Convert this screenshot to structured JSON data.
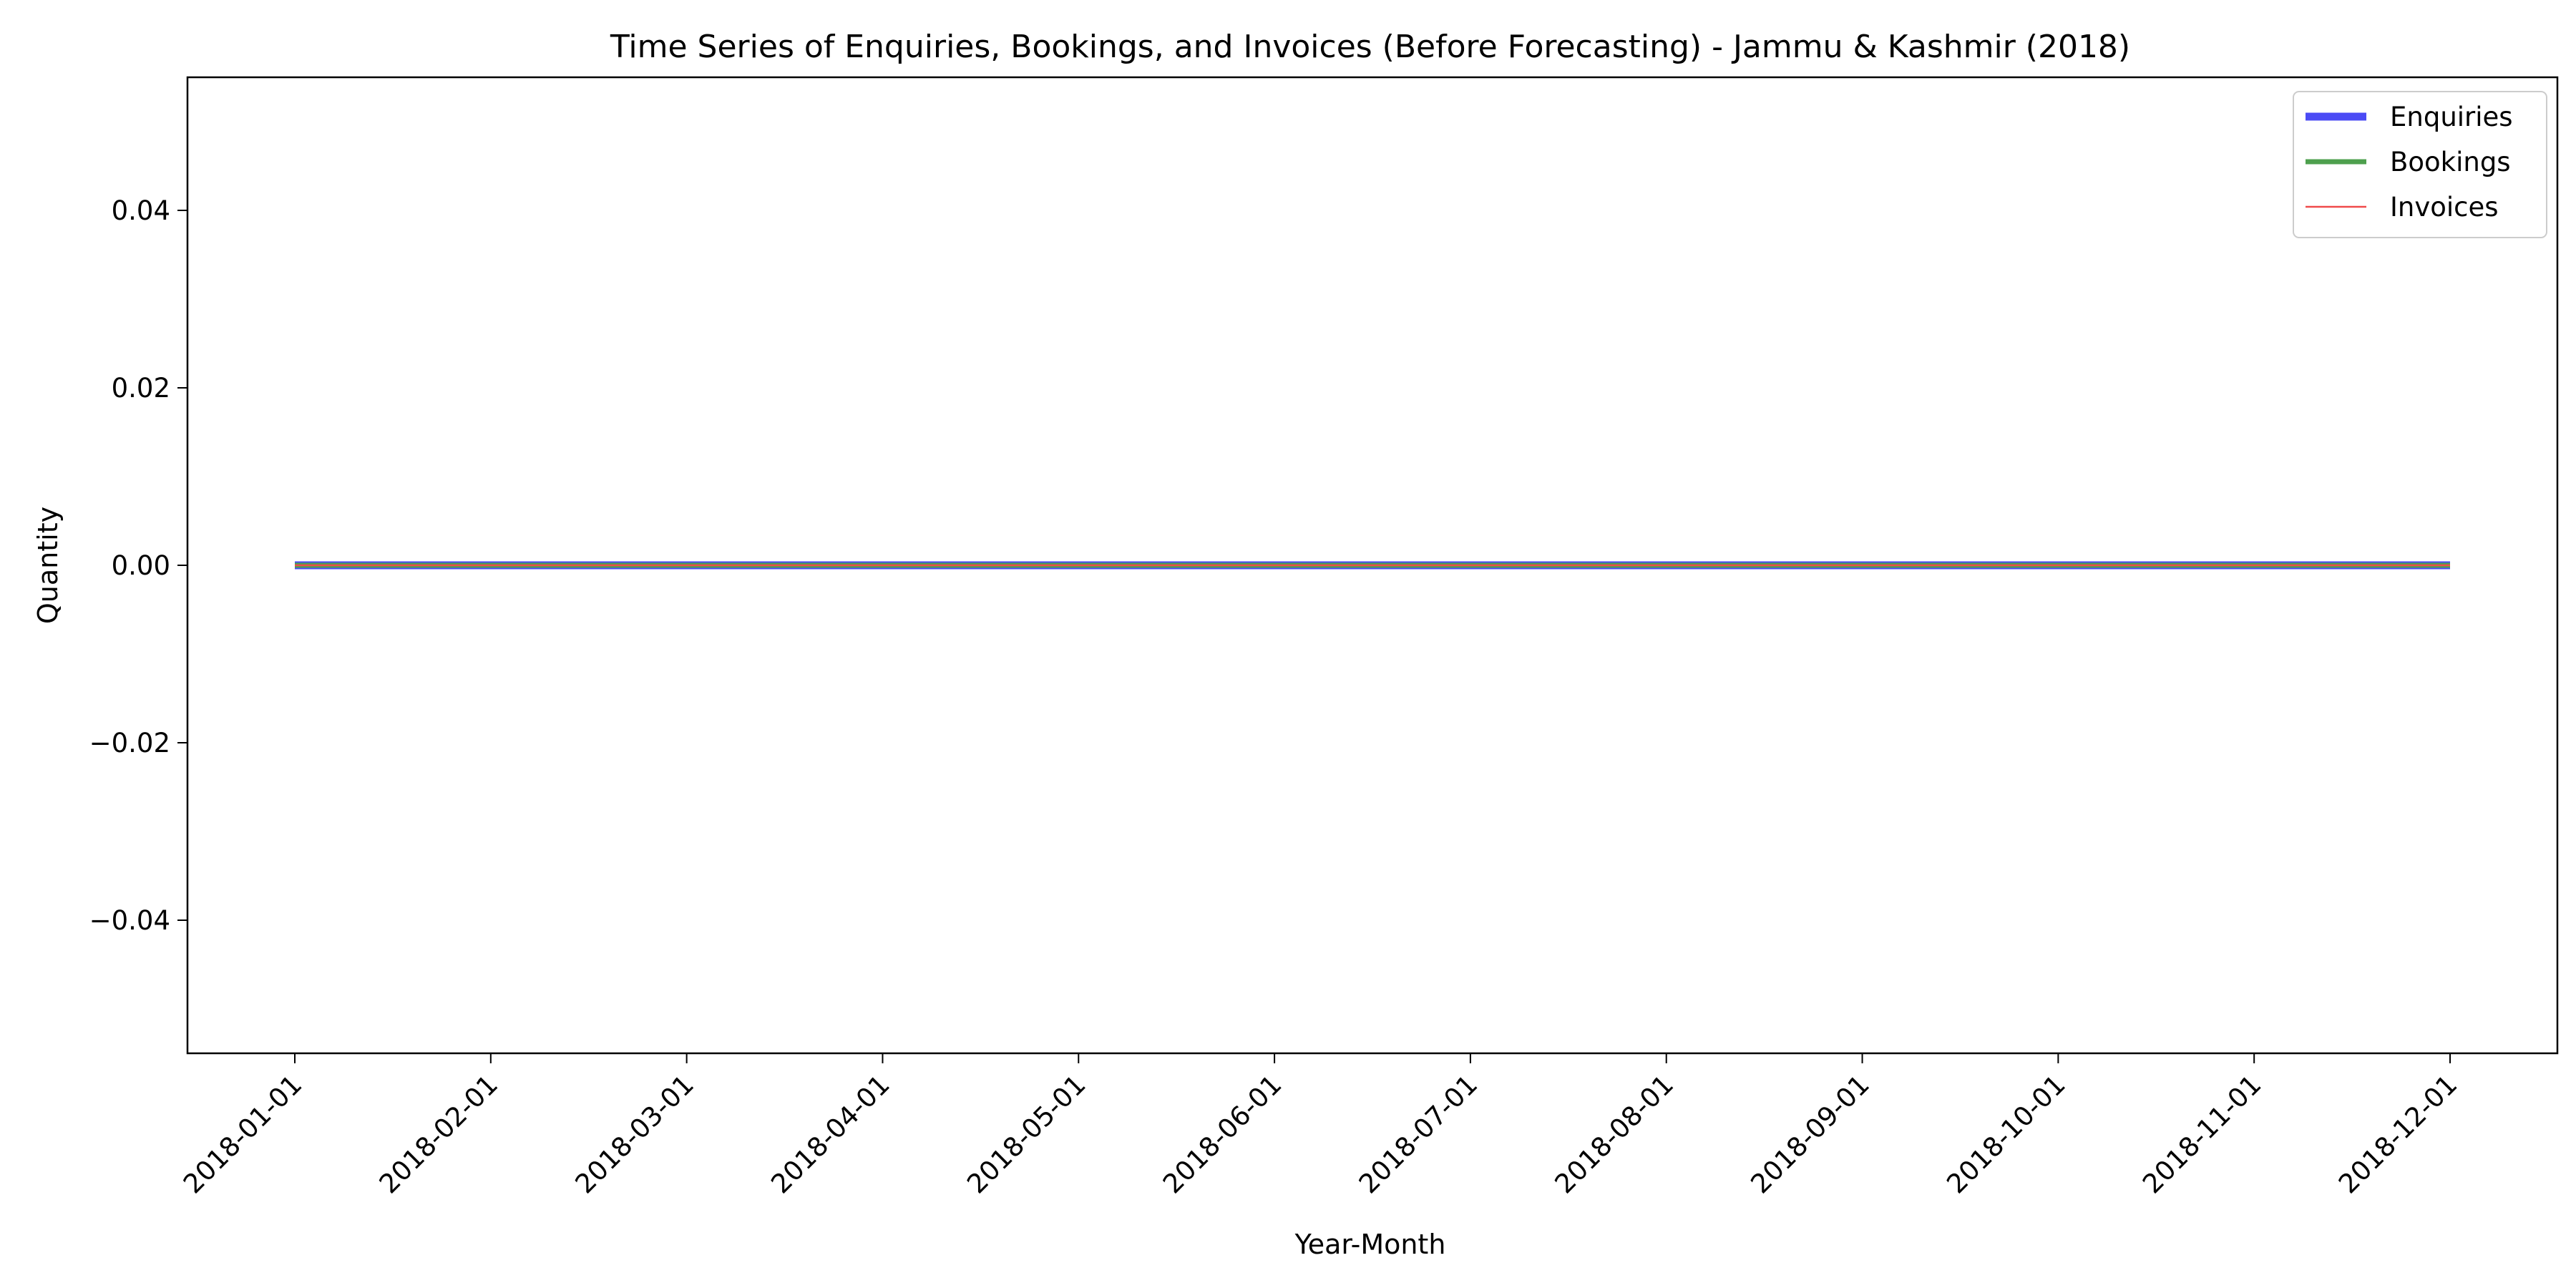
{
  "chart_data": {
    "type": "line",
    "title": "Time Series of Enquiries, Bookings, and Invoices (Before Forecasting) - Jammu & Kashmir (2018)",
    "xlabel": "Year-Month",
    "ylabel": "Quantity",
    "x": [
      "2018-01-01",
      "2018-02-01",
      "2018-03-01",
      "2018-04-01",
      "2018-05-01",
      "2018-06-01",
      "2018-07-01",
      "2018-08-01",
      "2018-09-01",
      "2018-10-01",
      "2018-11-01",
      "2018-12-01"
    ],
    "yticks": [
      -0.04,
      -0.02,
      0.0,
      0.02,
      0.04
    ],
    "ytick_labels": [
      "−0.04",
      "−0.02",
      "0.00",
      "0.02",
      "0.04"
    ],
    "ylim": [
      -0.055,
      0.055
    ],
    "grid": false,
    "legend_position": "top-right",
    "series": [
      {
        "name": "Enquiries",
        "color": "#4b4bf5",
        "values": [
          0,
          0,
          0,
          0,
          0,
          0,
          0,
          0,
          0,
          0,
          0,
          0
        ]
      },
      {
        "name": "Bookings",
        "color": "#4ea04e",
        "values": [
          0,
          0,
          0,
          0,
          0,
          0,
          0,
          0,
          0,
          0,
          0,
          0
        ]
      },
      {
        "name": "Invoices",
        "color": "#f04b4b",
        "values": [
          0,
          0,
          0,
          0,
          0,
          0,
          0,
          0,
          0,
          0,
          0,
          0
        ]
      }
    ]
  }
}
